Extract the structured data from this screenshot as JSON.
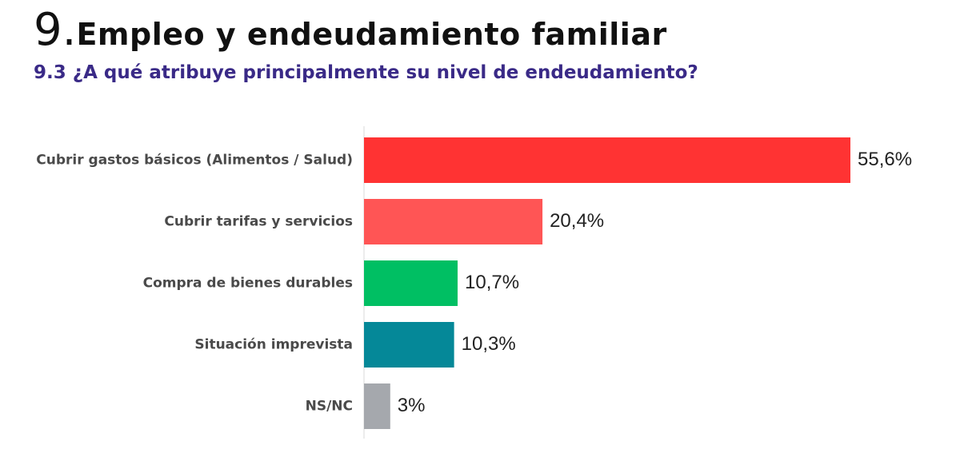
{
  "header": {
    "number": "9.",
    "title": "Empleo y endeudamiento familiar",
    "subtitle": "9.3 ¿A qué atribuye principalmente su nivel de endeudamiento?"
  },
  "chart_data": {
    "type": "bar",
    "orientation": "horizontal",
    "title": "9.3 ¿A qué atribuye principalmente su nivel de endeudamiento?",
    "xlabel": "",
    "ylabel": "",
    "grid": false,
    "categories": [
      "Cubrir gastos básicos (Alimentos / Salud)",
      "Cubrir tarifas y servicios",
      "Compra de bienes durables",
      "Situación imprevista",
      "NS/NC"
    ],
    "values": [
      55.6,
      20.4,
      10.7,
      10.3,
      3
    ],
    "value_labels": [
      "55,6%",
      "20,4%",
      "10,7%",
      "10,3%",
      "3%"
    ],
    "colors": [
      "#ff3333",
      "#ff5555",
      "#00bf63",
      "#058898",
      "#a5a8ad"
    ],
    "unit": "%"
  }
}
